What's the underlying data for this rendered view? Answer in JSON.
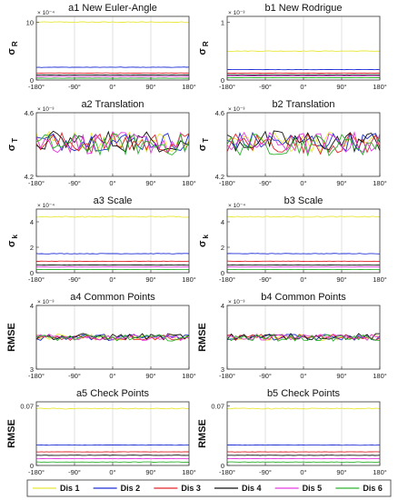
{
  "colors": {
    "Dis 1": "#e8e83a",
    "Dis 2": "#1f2fd6",
    "Dis 3": "#e0252a",
    "Dis 4": "#111111",
    "Dis 5": "#e43be0",
    "Dis 6": "#2db22d"
  },
  "legend": [
    "Dis 1",
    "Dis 2",
    "Dis 3",
    "Dis 4",
    "Dis 5",
    "Dis 6"
  ],
  "chart_data": [
    {
      "id": "a1",
      "type": "line",
      "title": "a1 New Euler-Angle",
      "ylabel": "σ",
      "ysub": "R",
      "exponent": "× 10⁻⁴",
      "xticks": [
        "-180°",
        "-90°",
        "0°",
        "90°",
        "180°"
      ],
      "yticks": [
        "0",
        "10"
      ],
      "xlim": [
        -180,
        180
      ],
      "ylim": [
        0,
        11
      ],
      "series": [
        {
          "name": "Dis 1",
          "level": 10.0,
          "noise": 0.08
        },
        {
          "name": "Dis 2",
          "level": 2.2,
          "noise": 0.04
        },
        {
          "name": "Dis 3",
          "level": 1.2,
          "noise": 0.03
        },
        {
          "name": "Dis 4",
          "level": 0.85,
          "noise": 0.02
        },
        {
          "name": "Dis 5",
          "level": 0.6,
          "noise": 0.02
        },
        {
          "name": "Dis 6",
          "level": 0.3,
          "noise": 0.02
        }
      ]
    },
    {
      "id": "b1",
      "type": "line",
      "title": "b1 New Rodrigue",
      "ylabel": "σ",
      "ysub": "R",
      "exponent": "× 10⁻³",
      "xticks": [
        "-180°",
        "-90°",
        "0°",
        "90°",
        "180°"
      ],
      "yticks": [
        "0",
        "1"
      ],
      "xlim": [
        -180,
        180
      ],
      "ylim": [
        0,
        1.1
      ],
      "series": [
        {
          "name": "Dis 1",
          "level": 0.5,
          "noise": 0.005
        },
        {
          "name": "Dis 2",
          "level": 0.18,
          "noise": 0.003
        },
        {
          "name": "Dis 3",
          "level": 0.12,
          "noise": 0.002
        },
        {
          "name": "Dis 4",
          "level": 0.09,
          "noise": 0.002
        },
        {
          "name": "Dis 5",
          "level": 0.07,
          "noise": 0.002
        },
        {
          "name": "Dis 6",
          "level": 0.04,
          "noise": 0.002
        }
      ]
    },
    {
      "id": "a2",
      "type": "line",
      "title": "a2 Translation",
      "ylabel": "σ",
      "ysub": "T",
      "exponent": "× 10⁻³",
      "xticks": [
        "-180°",
        "-90°",
        "0°",
        "90°",
        "180°"
      ],
      "yticks": [
        "4.2",
        "4.6"
      ],
      "xlim": [
        -180,
        180
      ],
      "ylim": [
        4.2,
        4.6
      ],
      "series": [
        {
          "name": "Dis 1",
          "level": 4.42,
          "noise": 0.07
        },
        {
          "name": "Dis 2",
          "level": 4.42,
          "noise": 0.06
        },
        {
          "name": "Dis 3",
          "level": 4.41,
          "noise": 0.07
        },
        {
          "name": "Dis 4",
          "level": 4.42,
          "noise": 0.07
        },
        {
          "name": "Dis 5",
          "level": 4.41,
          "noise": 0.07
        },
        {
          "name": "Dis 6",
          "level": 4.4,
          "noise": 0.07
        }
      ]
    },
    {
      "id": "b2",
      "type": "line",
      "title": "b2 Translation",
      "ylabel": "σ",
      "ysub": "T",
      "exponent": "× 10⁻³",
      "xticks": [
        "-180°",
        "-90°",
        "0°",
        "90°",
        "180°"
      ],
      "yticks": [
        "4.2",
        "4.6"
      ],
      "xlim": [
        -180,
        180
      ],
      "ylim": [
        4.2,
        4.6
      ],
      "series": [
        {
          "name": "Dis 1",
          "level": 4.42,
          "noise": 0.07
        },
        {
          "name": "Dis 2",
          "level": 4.42,
          "noise": 0.06
        },
        {
          "name": "Dis 3",
          "level": 4.41,
          "noise": 0.07
        },
        {
          "name": "Dis 4",
          "level": 4.42,
          "noise": 0.07
        },
        {
          "name": "Dis 5",
          "level": 4.41,
          "noise": 0.07
        },
        {
          "name": "Dis 6",
          "level": 4.4,
          "noise": 0.07
        }
      ]
    },
    {
      "id": "a3",
      "type": "line",
      "title": "a3 Scale",
      "ylabel": "σ",
      "ysub": "k",
      "exponent": "× 10⁻⁴",
      "xticks": [
        "-180°",
        "-90°",
        "0°",
        "90°",
        "180°"
      ],
      "yticks": [
        "0",
        "2",
        "4"
      ],
      "xlim": [
        -180,
        180
      ],
      "ylim": [
        0,
        5
      ],
      "series": [
        {
          "name": "Dis 1",
          "level": 4.4,
          "noise": 0.04
        },
        {
          "name": "Dis 2",
          "level": 1.5,
          "noise": 0.02
        },
        {
          "name": "Dis 3",
          "level": 0.9,
          "noise": 0.015
        },
        {
          "name": "Dis 4",
          "level": 0.6,
          "noise": 0.01
        },
        {
          "name": "Dis 5",
          "level": 0.45,
          "noise": 0.01
        },
        {
          "name": "Dis 6",
          "level": 0.25,
          "noise": 0.01
        }
      ]
    },
    {
      "id": "b3",
      "type": "line",
      "title": "b3 Scale",
      "ylabel": "σ",
      "ysub": "k",
      "exponent": "× 10⁻⁴",
      "xticks": [
        "-180°",
        "-90°",
        "0°",
        "90°",
        "180°"
      ],
      "yticks": [
        "0",
        "2",
        "4"
      ],
      "xlim": [
        -180,
        180
      ],
      "ylim": [
        0,
        5
      ],
      "series": [
        {
          "name": "Dis 1",
          "level": 4.4,
          "noise": 0.04
        },
        {
          "name": "Dis 2",
          "level": 1.5,
          "noise": 0.02
        },
        {
          "name": "Dis 3",
          "level": 0.9,
          "noise": 0.015
        },
        {
          "name": "Dis 4",
          "level": 0.6,
          "noise": 0.01
        },
        {
          "name": "Dis 5",
          "level": 0.45,
          "noise": 0.01
        },
        {
          "name": "Dis 6",
          "level": 0.25,
          "noise": 0.01
        }
      ]
    },
    {
      "id": "a4",
      "type": "line",
      "title": "a4 Common Points",
      "ylabel": "RMSE",
      "ysub": "",
      "exponent": "× 10⁻³",
      "xticks": [
        "-180°",
        "-90°",
        "0°",
        "90°",
        "180°"
      ],
      "yticks": [
        "3",
        "4"
      ],
      "xlim": [
        -180,
        180
      ],
      "ylim": [
        3,
        4
      ],
      "series": [
        {
          "name": "Dis 1",
          "level": 3.5,
          "noise": 0.05
        },
        {
          "name": "Dis 2",
          "level": 3.5,
          "noise": 0.05
        },
        {
          "name": "Dis 3",
          "level": 3.5,
          "noise": 0.05
        },
        {
          "name": "Dis 4",
          "level": 3.51,
          "noise": 0.05
        },
        {
          "name": "Dis 5",
          "level": 3.5,
          "noise": 0.05
        },
        {
          "name": "Dis 6",
          "level": 3.49,
          "noise": 0.05
        }
      ]
    },
    {
      "id": "b4",
      "type": "line",
      "title": "b4 Common  Points",
      "ylabel": "RMSE",
      "ysub": "",
      "exponent": "× 10⁻³",
      "xticks": [
        "-180°",
        "-90°",
        "0°",
        "90°",
        "180°"
      ],
      "yticks": [
        "3",
        "4"
      ],
      "xlim": [
        -180,
        180
      ],
      "ylim": [
        3,
        4
      ],
      "series": [
        {
          "name": "Dis 1",
          "level": 3.5,
          "noise": 0.05
        },
        {
          "name": "Dis 2",
          "level": 3.5,
          "noise": 0.05
        },
        {
          "name": "Dis 3",
          "level": 3.5,
          "noise": 0.05
        },
        {
          "name": "Dis 4",
          "level": 3.51,
          "noise": 0.05
        },
        {
          "name": "Dis 5",
          "level": 3.5,
          "noise": 0.05
        },
        {
          "name": "Dis 6",
          "level": 3.49,
          "noise": 0.05
        }
      ]
    },
    {
      "id": "a5",
      "type": "line",
      "title": "a5 Check Points",
      "ylabel": "RMSE",
      "ysub": "",
      "exponent": "",
      "xticks": [
        "-180°",
        "-90°",
        "0°",
        "90°",
        "180°"
      ],
      "yticks": [
        "0",
        "0.07"
      ],
      "xlim": [
        -180,
        180
      ],
      "ylim": [
        0,
        0.075
      ],
      "series": [
        {
          "name": "Dis 1",
          "level": 0.067,
          "noise": 0.0005
        },
        {
          "name": "Dis 2",
          "level": 0.024,
          "noise": 0.0002
        },
        {
          "name": "Dis 3",
          "level": 0.016,
          "noise": 0.0002
        },
        {
          "name": "Dis 4",
          "level": 0.012,
          "noise": 0.0002
        },
        {
          "name": "Dis 5",
          "level": 0.008,
          "noise": 0.0002
        },
        {
          "name": "Dis 6",
          "level": 0.004,
          "noise": 0.0002
        }
      ]
    },
    {
      "id": "b5",
      "type": "line",
      "title": "b5 Check Points",
      "ylabel": "RMSE",
      "ysub": "",
      "exponent": "",
      "xticks": [
        "-180°",
        "-90°",
        "0°",
        "90°",
        "180°"
      ],
      "yticks": [
        "0",
        "0.07"
      ],
      "xlim": [
        -180,
        180
      ],
      "ylim": [
        0,
        0.075
      ],
      "series": [
        {
          "name": "Dis 1",
          "level": 0.067,
          "noise": 0.0005
        },
        {
          "name": "Dis 2",
          "level": 0.024,
          "noise": 0.0002
        },
        {
          "name": "Dis 3",
          "level": 0.016,
          "noise": 0.0002
        },
        {
          "name": "Dis 4",
          "level": 0.012,
          "noise": 0.0002
        },
        {
          "name": "Dis 5",
          "level": 0.008,
          "noise": 0.0002
        },
        {
          "name": "Dis 6",
          "level": 0.004,
          "noise": 0.0002
        }
      ]
    }
  ]
}
